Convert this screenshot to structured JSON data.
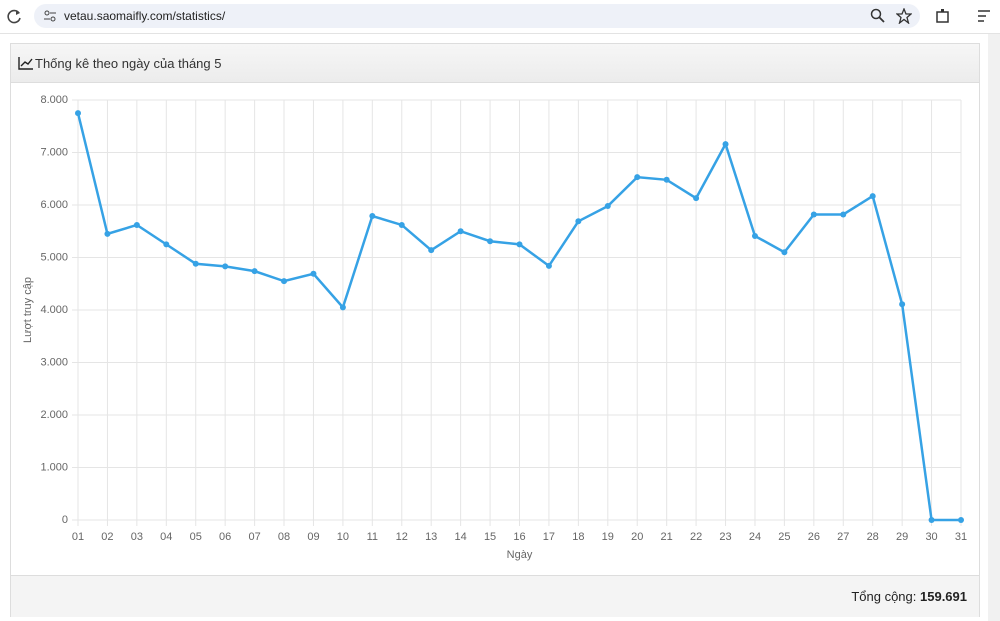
{
  "browser": {
    "url": "vetau.saomaifly.com/statistics/"
  },
  "card": {
    "title": "Thống kê theo ngày của tháng 5",
    "total_label": "Tổng cộng:",
    "total_value": "159.691"
  },
  "chart_data": {
    "type": "line",
    "y_label": "Lượt truy cập",
    "x_label": "Ngày",
    "categories": [
      "01",
      "02",
      "03",
      "04",
      "05",
      "06",
      "07",
      "08",
      "09",
      "10",
      "11",
      "12",
      "13",
      "14",
      "15",
      "16",
      "17",
      "18",
      "19",
      "20",
      "21",
      "22",
      "23",
      "24",
      "25",
      "26",
      "27",
      "28",
      "29",
      "30",
      "31"
    ],
    "values": [
      7750,
      5450,
      5620,
      5250,
      4880,
      4830,
      4740,
      4550,
      4690,
      4050,
      5790,
      5620,
      5140,
      5500,
      5310,
      5250,
      4840,
      5690,
      5980,
      6530,
      6480,
      6130,
      7160,
      5410,
      5100,
      5820,
      5820,
      6170,
      4110,
      0,
      0
    ],
    "color": "#36a2e5",
    "ylim": [
      0,
      8000
    ],
    "yticks": [
      0,
      {
        "value": 1000,
        "label": "1.000"
      },
      {
        "value": 2000,
        "label": "2.000"
      },
      {
        "value": 3000,
        "label": "3.000"
      },
      {
        "value": 4000,
        "label": "4.000"
      },
      {
        "value": 5000,
        "label": "5.000"
      },
      {
        "value": 6000,
        "label": "6.000"
      },
      {
        "value": 7000,
        "label": "7.000"
      },
      {
        "value": 8000,
        "label": "8.000"
      }
    ],
    "grid": true
  }
}
